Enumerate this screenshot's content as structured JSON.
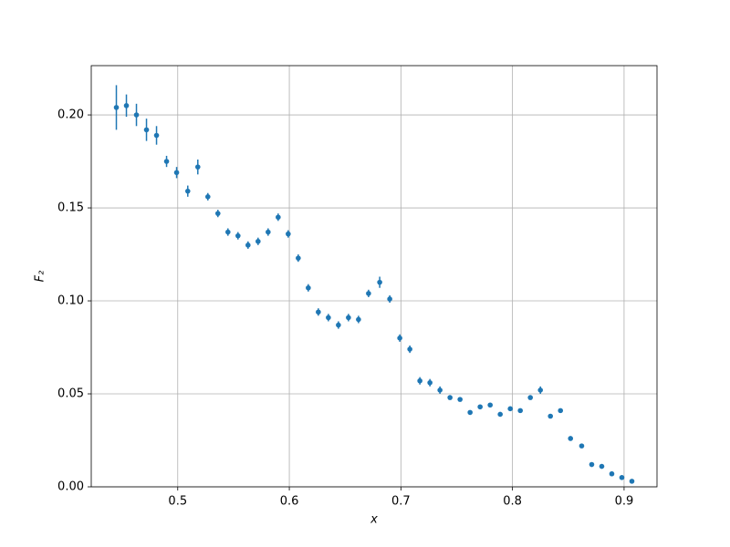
{
  "chart_data": {
    "type": "scatter",
    "xlabel": "x",
    "ylabel": "F₂",
    "color": "#1f77b4",
    "x": [
      0.445,
      0.454,
      0.463,
      0.472,
      0.481,
      0.49,
      0.499,
      0.509,
      0.518,
      0.527,
      0.536,
      0.545,
      0.554,
      0.563,
      0.572,
      0.581,
      0.59,
      0.599,
      0.608,
      0.617,
      0.626,
      0.635,
      0.644,
      0.653,
      0.662,
      0.671,
      0.681,
      0.69,
      0.699,
      0.708,
      0.717,
      0.726,
      0.735,
      0.744,
      0.753,
      0.762,
      0.771,
      0.78,
      0.789,
      0.798,
      0.807,
      0.816,
      0.825,
      0.834,
      0.843,
      0.852,
      0.862,
      0.871,
      0.88,
      0.889,
      0.898,
      0.907
    ],
    "values": [
      0.204,
      0.205,
      0.2,
      0.192,
      0.189,
      0.175,
      0.169,
      0.159,
      0.172,
      0.156,
      0.147,
      0.137,
      0.135,
      0.13,
      0.132,
      0.137,
      0.145,
      0.136,
      0.123,
      0.107,
      0.094,
      0.091,
      0.087,
      0.091,
      0.09,
      0.104,
      0.11,
      0.101,
      0.08,
      0.074,
      0.057,
      0.056,
      0.052,
      0.048,
      0.047,
      0.04,
      0.043,
      0.044,
      0.039,
      0.042,
      0.041,
      0.048,
      0.052,
      0.038,
      0.041,
      0.026,
      0.022,
      0.012,
      0.011,
      0.007,
      0.005,
      0.003
    ],
    "errors": [
      0.012,
      0.006,
      0.006,
      0.006,
      0.005,
      0.003,
      0.003,
      0.003,
      0.004,
      0.002,
      0.002,
      0.002,
      0.002,
      0.002,
      0.002,
      0.002,
      0.002,
      0.002,
      0.002,
      0.002,
      0.002,
      0.002,
      0.002,
      0.002,
      0.002,
      0.002,
      0.003,
      0.002,
      0.002,
      0.002,
      0.002,
      0.002,
      0.002,
      0.001,
      0.001,
      0.001,
      0.001,
      0.001,
      0.001,
      0.001,
      0.001,
      0.001,
      0.002,
      0.001,
      0.001,
      0.001,
      0.001,
      0.0005,
      0.0005,
      0.0005,
      0.0005,
      0.0005
    ],
    "xlim": [
      0.4225,
      0.9295
    ],
    "ylim": [
      0,
      0.2265
    ],
    "xticks": [
      0.5,
      0.6,
      0.7,
      0.8,
      0.9
    ],
    "yticks": [
      {
        "value": 0,
        "label": "0.00"
      },
      {
        "value": 0.05,
        "label": "0.05"
      },
      {
        "value": 0.1,
        "label": "0.10"
      },
      {
        "value": 0.15,
        "label": "0.15"
      },
      {
        "value": 0.2,
        "label": "0.20"
      }
    ],
    "grid": true
  }
}
